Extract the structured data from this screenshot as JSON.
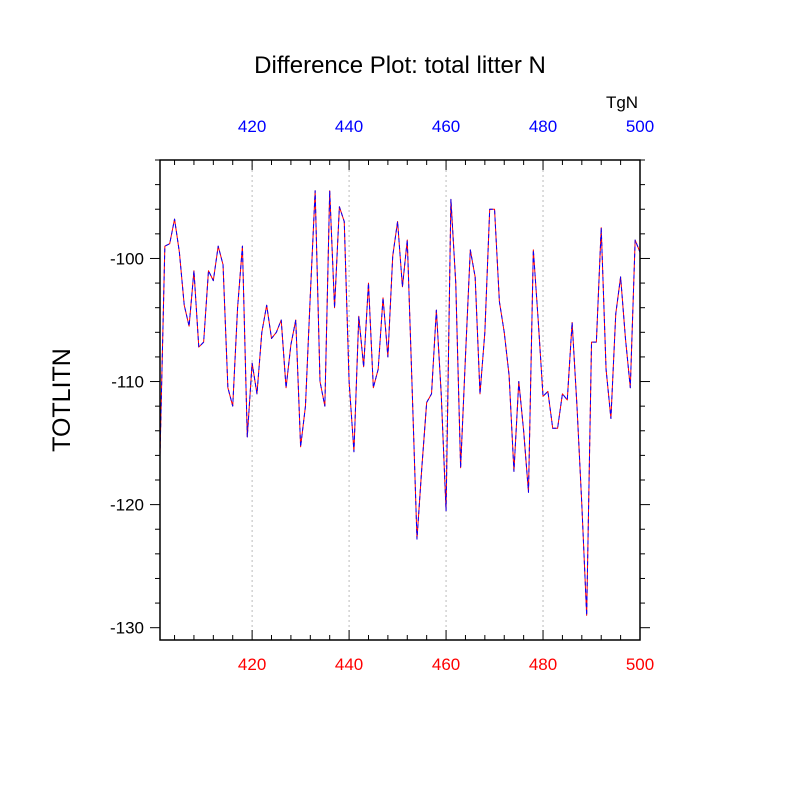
{
  "chart_data": {
    "type": "line",
    "title": "Difference Plot: total litter N",
    "ylabel": "TOTLITN",
    "unit_label": "TgN",
    "xlim": [
      401,
      500
    ],
    "ylim": [
      -131,
      -92
    ],
    "x_ticks": [
      420,
      440,
      460,
      480,
      500
    ],
    "y_ticks": [
      -130,
      -120,
      -110,
      -100
    ],
    "grid": "vertical-dotted-at-x-ticks",
    "colors": {
      "series_a": "#ff0000",
      "series_b": "#0000ff",
      "top_ticks": "#0000ff",
      "bottom_ticks": "#ff0000",
      "grid": "#bbbbbb"
    },
    "x": [
      401,
      402,
      403,
      404,
      405,
      406,
      407,
      408,
      409,
      410,
      411,
      412,
      413,
      414,
      415,
      416,
      417,
      418,
      419,
      420,
      421,
      422,
      423,
      424,
      425,
      426,
      427,
      428,
      429,
      430,
      431,
      432,
      433,
      434,
      435,
      436,
      437,
      438,
      439,
      440,
      441,
      442,
      443,
      444,
      445,
      446,
      447,
      448,
      449,
      450,
      451,
      452,
      453,
      454,
      455,
      456,
      457,
      458,
      459,
      460,
      461,
      462,
      463,
      464,
      465,
      466,
      467,
      468,
      469,
      470,
      471,
      472,
      473,
      474,
      475,
      476,
      477,
      478,
      479,
      480,
      481,
      482,
      483,
      484,
      485,
      486,
      487,
      488,
      489,
      490,
      491,
      492,
      493,
      494,
      495,
      496,
      497,
      498,
      499,
      500
    ],
    "series": [
      {
        "values": [
          -116.0,
          -99.0,
          -98.8,
          -96.8,
          -99.5,
          -103.8,
          -105.5,
          -101.0,
          -107.2,
          -106.8,
          -101.0,
          -101.8,
          -99.0,
          -100.5,
          -110.5,
          -112.0,
          -104.0,
          -99.0,
          -114.5,
          -108.5,
          -111.0,
          -106.0,
          -103.8,
          -106.5,
          -106.0,
          -105.0,
          -110.5,
          -107.0,
          -105.0,
          -115.3,
          -112.0,
          -103.0,
          -94.5,
          -110.0,
          -112.0,
          -94.5,
          -104.0,
          -95.8,
          -97.0,
          -110.0,
          -115.7,
          -104.7,
          -108.8,
          -102.0,
          -110.5,
          -109.0,
          -103.2,
          -108.0,
          -99.8,
          -97.0,
          -102.3,
          -98.5,
          -110.5,
          -122.8,
          -117.0,
          -111.7,
          -111.0,
          -104.2,
          -111.0,
          -120.5,
          -95.2,
          -102.0,
          -117.0,
          -108.0,
          -99.3,
          -101.5,
          -111.0,
          -106.0,
          -96.0,
          -96.0,
          -103.5,
          -106.0,
          -109.5,
          -117.3,
          -110.0,
          -114.0,
          -119.0,
          -99.3,
          -105.0,
          -111.2,
          -110.8,
          -113.8,
          -113.8,
          -111.0,
          -111.5,
          -105.2,
          -112.0,
          -120.0,
          -129.0,
          -106.8,
          -106.8,
          -97.5,
          -109.0,
          -113.0,
          -104.5,
          -101.5,
          -106.5,
          -110.5,
          -98.5,
          -99.5
        ]
      },
      {
        "values": [
          -116.0,
          -99.0,
          -98.8,
          -96.8,
          -99.5,
          -103.8,
          -105.5,
          -101.0,
          -107.2,
          -106.8,
          -101.0,
          -101.8,
          -99.0,
          -100.5,
          -110.5,
          -112.0,
          -104.0,
          -99.0,
          -114.5,
          -108.5,
          -111.0,
          -106.0,
          -103.8,
          -106.5,
          -106.0,
          -105.0,
          -110.5,
          -107.0,
          -105.0,
          -115.3,
          -112.0,
          -103.0,
          -94.5,
          -110.0,
          -112.0,
          -94.5,
          -104.0,
          -95.8,
          -97.0,
          -110.0,
          -115.7,
          -104.7,
          -108.8,
          -102.0,
          -110.5,
          -109.0,
          -103.2,
          -108.0,
          -99.8,
          -97.0,
          -102.3,
          -98.5,
          -110.5,
          -122.8,
          -117.0,
          -111.7,
          -111.0,
          -104.2,
          -111.0,
          -120.5,
          -95.2,
          -102.0,
          -117.0,
          -108.0,
          -99.3,
          -101.5,
          -111.0,
          -106.0,
          -96.0,
          -96.0,
          -103.5,
          -106.0,
          -109.5,
          -117.3,
          -110.0,
          -114.0,
          -119.0,
          -99.3,
          -105.0,
          -111.2,
          -110.8,
          -113.8,
          -113.8,
          -111.0,
          -111.5,
          -105.2,
          -112.0,
          -120.0,
          -129.0,
          -106.8,
          -106.8,
          -97.5,
          -109.0,
          -113.0,
          -104.5,
          -101.5,
          -106.5,
          -110.5,
          -98.5,
          -99.5
        ]
      }
    ]
  }
}
